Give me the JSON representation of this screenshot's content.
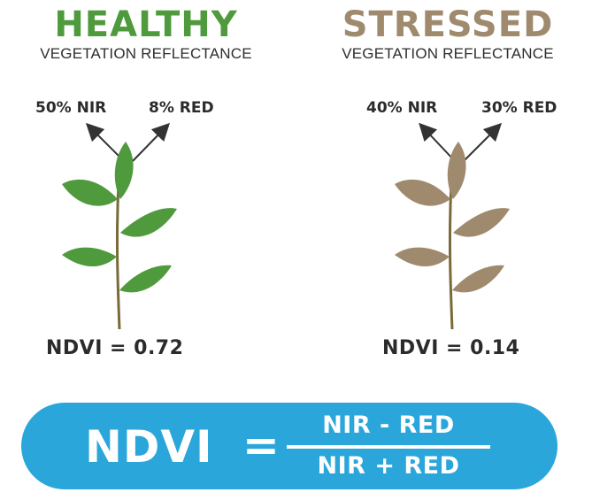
{
  "healthy": {
    "title": "HEALTHY",
    "subtitle": "VEGETATION REFLECTANCE",
    "nir_label": "50% NIR",
    "red_label": "8% RED",
    "ndvi_text": "NDVI = 0.72",
    "leaf_color": "#4e9a3c",
    "title_color": "#4e9a3c"
  },
  "stressed": {
    "title": "STRESSED",
    "subtitle": "VEGETATION REFLECTANCE",
    "nir_label": "40% NIR",
    "red_label": "30% RED",
    "ndvi_text": "NDVI = 0.14",
    "leaf_color": "#a08a6e",
    "title_color": "#a08a6e"
  },
  "formula": {
    "lhs": "NDVI",
    "equals": "=",
    "numerator": "NIR - RED",
    "denominator": "NIR + RED",
    "bar_color": "#2aa6db"
  },
  "colors": {
    "stem": "#7a6a3a",
    "arrow": "#333333",
    "text": "#2b2b2b"
  }
}
